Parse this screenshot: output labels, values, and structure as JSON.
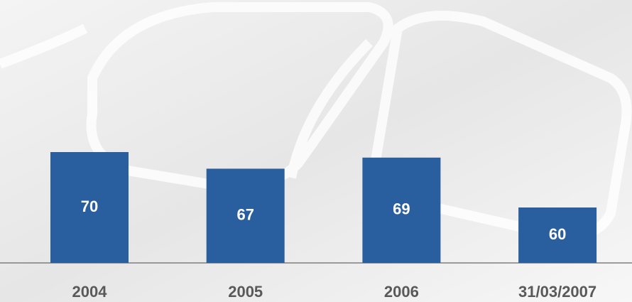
{
  "chart_data": {
    "type": "bar",
    "categories": [
      "2004",
      "2005",
      "2006",
      "31/03/2007"
    ],
    "values": [
      70,
      67,
      69,
      60
    ],
    "color": "#2a5f9f",
    "ylim": [
      50,
      75
    ]
  }
}
